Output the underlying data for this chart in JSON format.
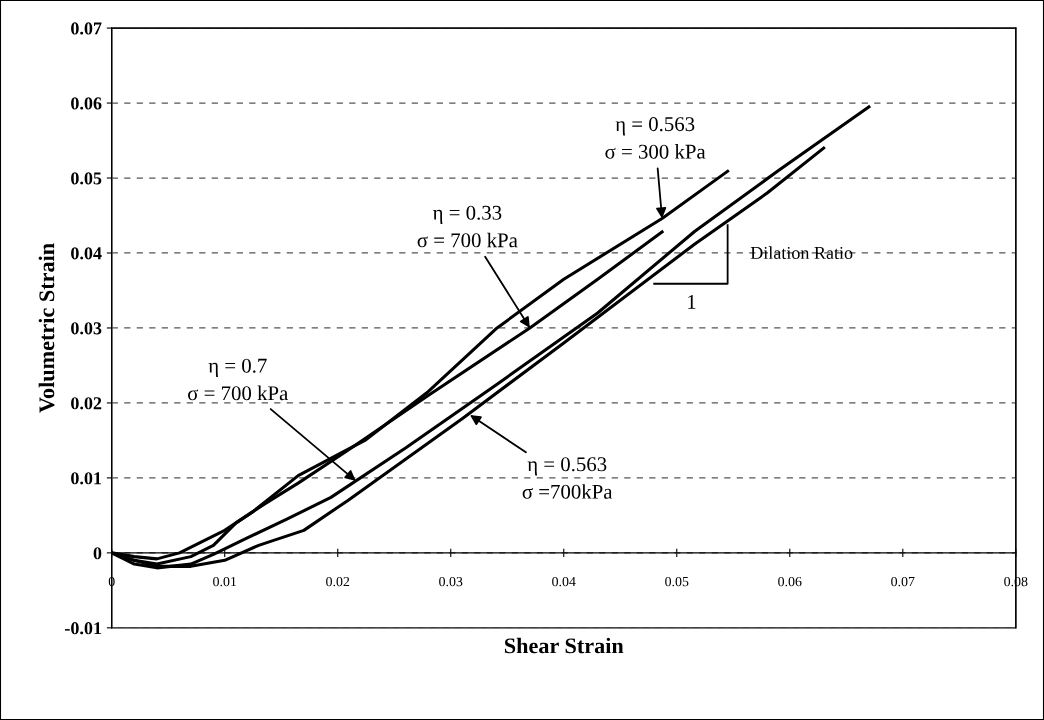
{
  "chart_data": {
    "type": "line",
    "xlabel": "Shear Strain",
    "ylabel": "Volumetric Strain",
    "xlim": [
      0,
      0.08
    ],
    "xticks": [
      0,
      0.01,
      0.02,
      0.03,
      0.04,
      0.05,
      0.06,
      0.07,
      0.08
    ],
    "ylim": [
      -0.01,
      0.07
    ],
    "yticks": [
      -0.01,
      0,
      0.01,
      0.02,
      0.03,
      0.04,
      0.05,
      0.06,
      0.07
    ],
    "grid": "y",
    "legend": false,
    "marker": "none",
    "line_style": "solid",
    "series": [
      {
        "color": "#000000",
        "x": [
          0,
          0.002,
          0.004,
          0.006,
          0.008,
          0.01,
          0.0125,
          0.0165,
          0.0224,
          0.028,
          0.0341,
          0.04,
          0.0487,
          0.0545
        ],
        "values": [
          0,
          -0.0005,
          -0.0008,
          0,
          0.0015,
          0.003,
          0.0055,
          0.0103,
          0.015,
          0.0215,
          0.03,
          0.0365,
          0.0446,
          0.0509
        ]
      },
      {
        "color": "#000000",
        "x": [
          0,
          0.002,
          0.004,
          0.007,
          0.009,
          0.011,
          0.0135,
          0.0165,
          0.0209,
          0.028,
          0.037,
          0.043,
          0.0487
        ],
        "values": [
          0,
          -0.001,
          -0.0015,
          -0.0005,
          0.001,
          0.004,
          0.0065,
          0.0093,
          0.0137,
          0.021,
          0.03,
          0.0365,
          0.0428
        ]
      },
      {
        "color": "#000000",
        "x": [
          0,
          0.002,
          0.004,
          0.007,
          0.009,
          0.012,
          0.0155,
          0.0194,
          0.026,
          0.0341,
          0.043,
          0.0516,
          0.059,
          0.067
        ],
        "values": [
          0,
          -0.0015,
          -0.002,
          -0.0015,
          -0.0002,
          0.002,
          0.0045,
          0.0074,
          0.014,
          0.0225,
          0.032,
          0.0429,
          0.051,
          0.0595
        ]
      },
      {
        "color": "#000000",
        "x": [
          0,
          0.002,
          0.004,
          0.007,
          0.01,
          0.013,
          0.017,
          0.0209,
          0.026,
          0.0311,
          0.04,
          0.0516,
          0.058,
          0.063
        ],
        "values": [
          0,
          -0.001,
          -0.0018,
          -0.0018,
          -0.001,
          0.001,
          0.003,
          0.007,
          0.0125,
          0.018,
          0.028,
          0.0412,
          0.048,
          0.054
        ]
      }
    ],
    "annotations": [
      {
        "text": "η = 0.563\nσ = 300 kPa",
        "x": 0.0487,
        "y": 0.0446
      },
      {
        "text": "η = 0.33\nσ = 700 kPa",
        "x": 0.037,
        "y": 0.03
      },
      {
        "text": "η = 0.7\nσ = 700 kPa",
        "x": 0.0216,
        "y": 0.0096
      },
      {
        "text": "η = 0.563\nσ =700kPa",
        "x": 0.0317,
        "y": 0.0184
      },
      "Dilation Ratio",
      "1"
    ]
  }
}
